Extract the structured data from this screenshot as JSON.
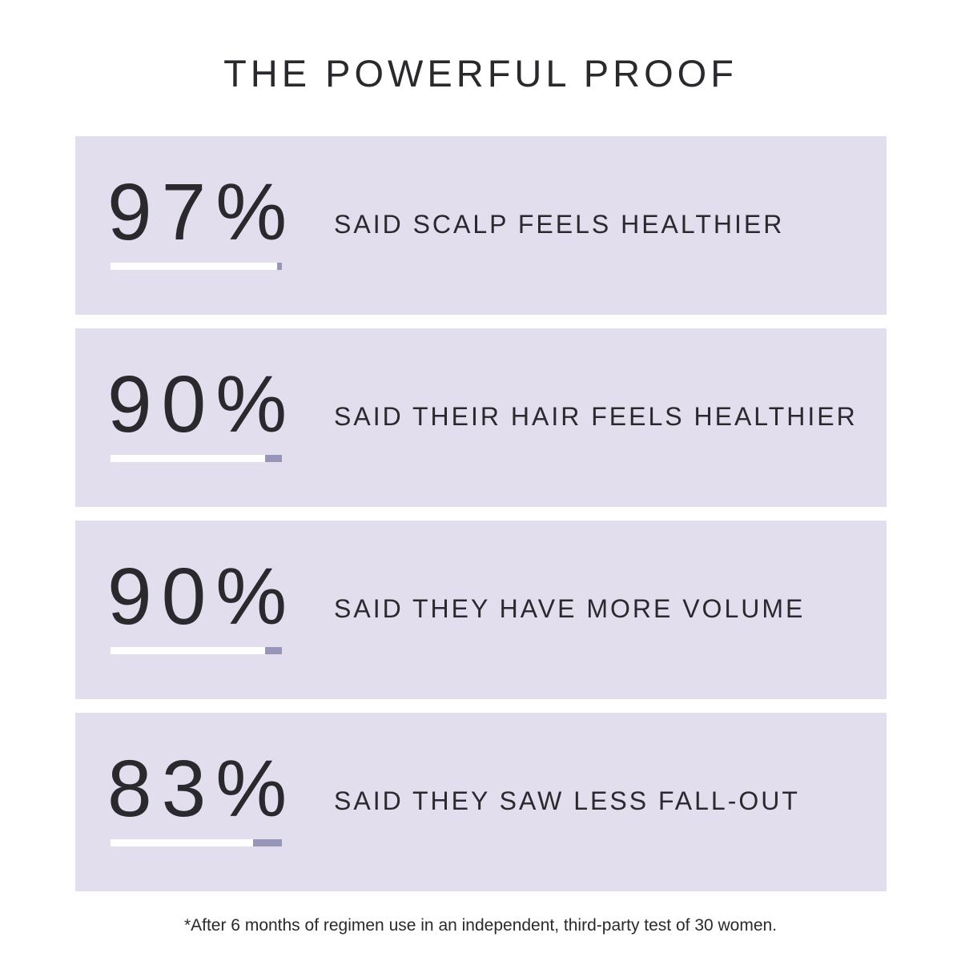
{
  "title": "THE POWERFUL PROOF",
  "colors": {
    "card_background": "#e2deee",
    "bar_fill": "#ffffff",
    "bar_remainder": "#9896b6",
    "text": "#2a2a2e"
  },
  "stats": [
    {
      "value": "97%",
      "percent": 97,
      "label": "SAID SCALP FEELS HEALTHIER"
    },
    {
      "value": "90%",
      "percent": 90,
      "label": "SAID THEIR HAIR FEELS HEALTHIER"
    },
    {
      "value": "90%",
      "percent": 90,
      "label": "SAID THEY HAVE MORE VOLUME"
    },
    {
      "value": "83%",
      "percent": 83,
      "label": "SAID THEY SAW LESS FALL-OUT"
    }
  ],
  "footnote": "*After 6 months of regimen use in an independent, third-party test of 30 women."
}
